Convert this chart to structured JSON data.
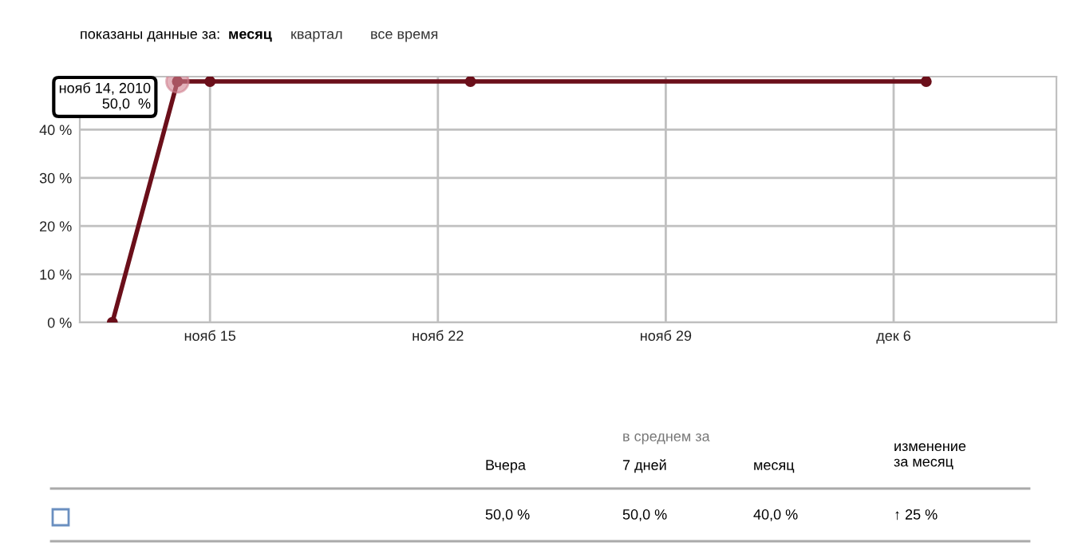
{
  "chart_data": {
    "type": "line",
    "title": "показаны данные за:",
    "x": [
      "2010-11-12",
      "2010-11-14",
      "2010-11-15",
      "2010-11-23",
      "2010-12-07"
    ],
    "series": [
      {
        "color": "#6b0f1a",
        "values": [
          0,
          50,
          50,
          50,
          50
        ]
      }
    ],
    "xlim": [
      "2010-11-11",
      "2010-12-11"
    ],
    "xticks": [
      {
        "value": "2010-11-15",
        "label": "нояб 15"
      },
      {
        "value": "2010-11-22",
        "label": "нояб 22"
      },
      {
        "value": "2010-11-29",
        "label": "нояб 29"
      },
      {
        "value": "2010-12-06",
        "label": "дек 6"
      }
    ],
    "ylim": [
      0,
      51
    ],
    "yticks": [
      {
        "value": 0,
        "label": "0 %"
      },
      {
        "value": 10,
        "label": "10 %"
      },
      {
        "value": 20,
        "label": "20 %"
      },
      {
        "value": 30,
        "label": "30 %"
      },
      {
        "value": 40,
        "label": "40 %"
      }
    ],
    "grid": true,
    "marker": "circle",
    "line_style": "solid",
    "annotations": [
      {
        "text": "нояб 14, 2010\n50,0  %",
        "x": "2010-11-14",
        "y": 50
      },
      "месяц",
      "квартал",
      "все время",
      "в среднем за",
      "Вчера",
      "7 дней",
      "месяц",
      "изменение\nза месяц",
      "50,0 %",
      "50,0 %",
      "40,0 %",
      "↑ 25 %"
    ]
  }
}
